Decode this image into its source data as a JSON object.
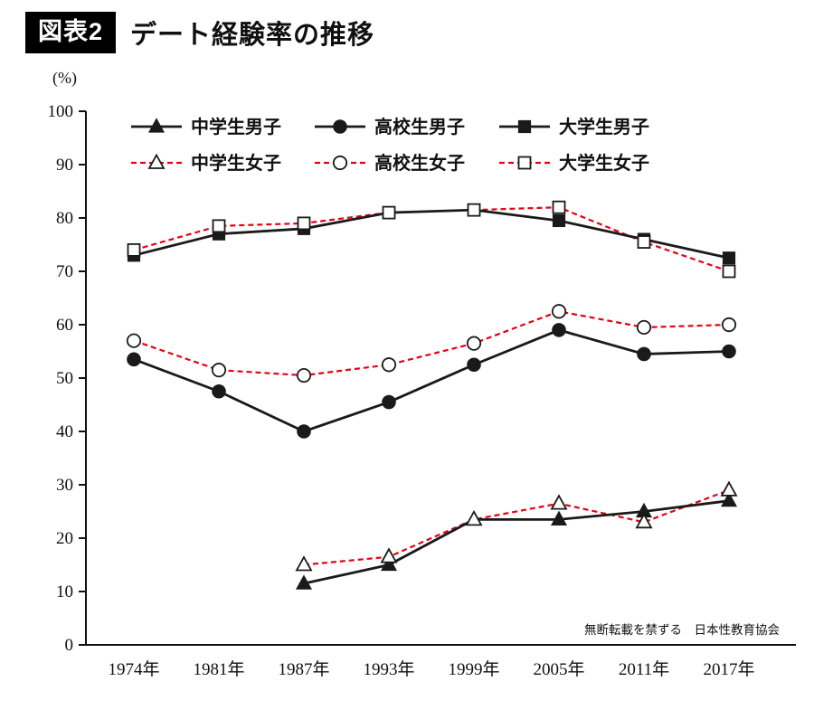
{
  "header": {
    "badge": "図表2",
    "title": "デート経験率の推移"
  },
  "chart_data": {
    "type": "line",
    "title": "デート経験率の推移",
    "unit_label": "(%)",
    "categories": [
      "1974年",
      "1981年",
      "1987年",
      "1993年",
      "1999年",
      "2005年",
      "2011年",
      "2017年"
    ],
    "ylim": [
      0,
      100
    ],
    "ytick_interval": 10,
    "grid": false,
    "legend_position": "top-inside",
    "colors": {
      "male_line": "#1a1a1a",
      "female_line": "#e60012",
      "marker_stroke": "#1a1a1a",
      "watermark": "#b8b8b8"
    },
    "series": [
      {
        "name": "中学生男子",
        "marker": "triangle",
        "fill": "filled",
        "line": "solid",
        "color": "#1a1a1a",
        "values": [
          null,
          null,
          11.5,
          15,
          23.5,
          23.5,
          25,
          27
        ]
      },
      {
        "name": "高校生男子",
        "marker": "circle",
        "fill": "filled",
        "line": "solid",
        "color": "#1a1a1a",
        "values": [
          53.5,
          47.5,
          40,
          45.5,
          52.5,
          59,
          54.5,
          55
        ]
      },
      {
        "name": "大学生男子",
        "marker": "square",
        "fill": "filled",
        "line": "solid",
        "color": "#1a1a1a",
        "values": [
          73,
          77,
          78,
          81,
          81.5,
          79.5,
          76,
          72.5
        ]
      },
      {
        "name": "中学生女子",
        "marker": "triangle",
        "fill": "open",
        "line": "dashed",
        "color": "#e60012",
        "values": [
          null,
          null,
          15,
          16.5,
          23.5,
          26.5,
          23,
          29
        ]
      },
      {
        "name": "高校生女子",
        "marker": "circle",
        "fill": "open",
        "line": "dashed",
        "color": "#e60012",
        "values": [
          57,
          51.5,
          50.5,
          52.5,
          56.5,
          62.5,
          59.5,
          60
        ]
      },
      {
        "name": "大学生女子",
        "marker": "square",
        "fill": "open",
        "line": "dashed",
        "color": "#e60012",
        "values": [
          74,
          78.5,
          79,
          81,
          81.5,
          82,
          75.5,
          70
        ]
      }
    ],
    "watermark": "無断転載を禁ずる　日本性教育協会"
  }
}
